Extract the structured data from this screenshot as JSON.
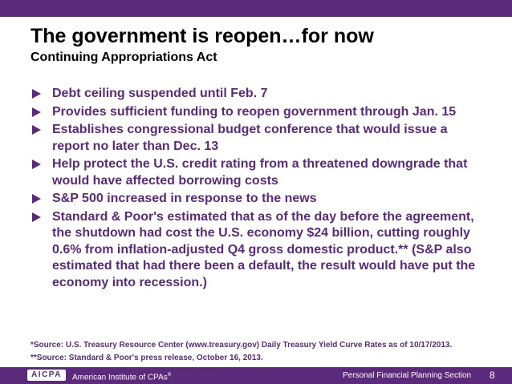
{
  "slide": {
    "title": "The government is reopen…for now",
    "subtitle": "Continuing Appropriations Act",
    "bullets": [
      "Debt ceiling suspended until Feb. 7",
      "Provides sufficient funding to reopen government through Jan. 15",
      "Establishes congressional budget conference that would issue a report no later than Dec. 13",
      "Help protect the U.S. credit rating from a threatened downgrade that would have affected borrowing costs",
      "S&P 500 increased in response to the news",
      "Standard & Poor's estimated that as of the day before the agreement, the shutdown had cost the U.S. economy $24 billion, cutting roughly 0.6% from inflation-adjusted Q4 gross domestic product.** (S&P also estimated that had there been a default, the result would have put the economy into recession.)"
    ],
    "footnotes": [
      "*Source: U.S. Treasury Resource Center (www.treasury.gov) Daily Treasury Yield Curve Rates as of 10/17/2013.",
      "**Source: Standard & Poor's press release, October 16, 2013."
    ]
  },
  "footer": {
    "logo_text": "AICPA",
    "org_name": "American Institute of CPAs",
    "org_mark": "®",
    "section": "Personal Financial Planning Section",
    "page_number": "8"
  },
  "colors": {
    "brand": "#5b2a7a",
    "title": "#000000"
  },
  "icons": {
    "bullet": "triangle-right-icon"
  }
}
